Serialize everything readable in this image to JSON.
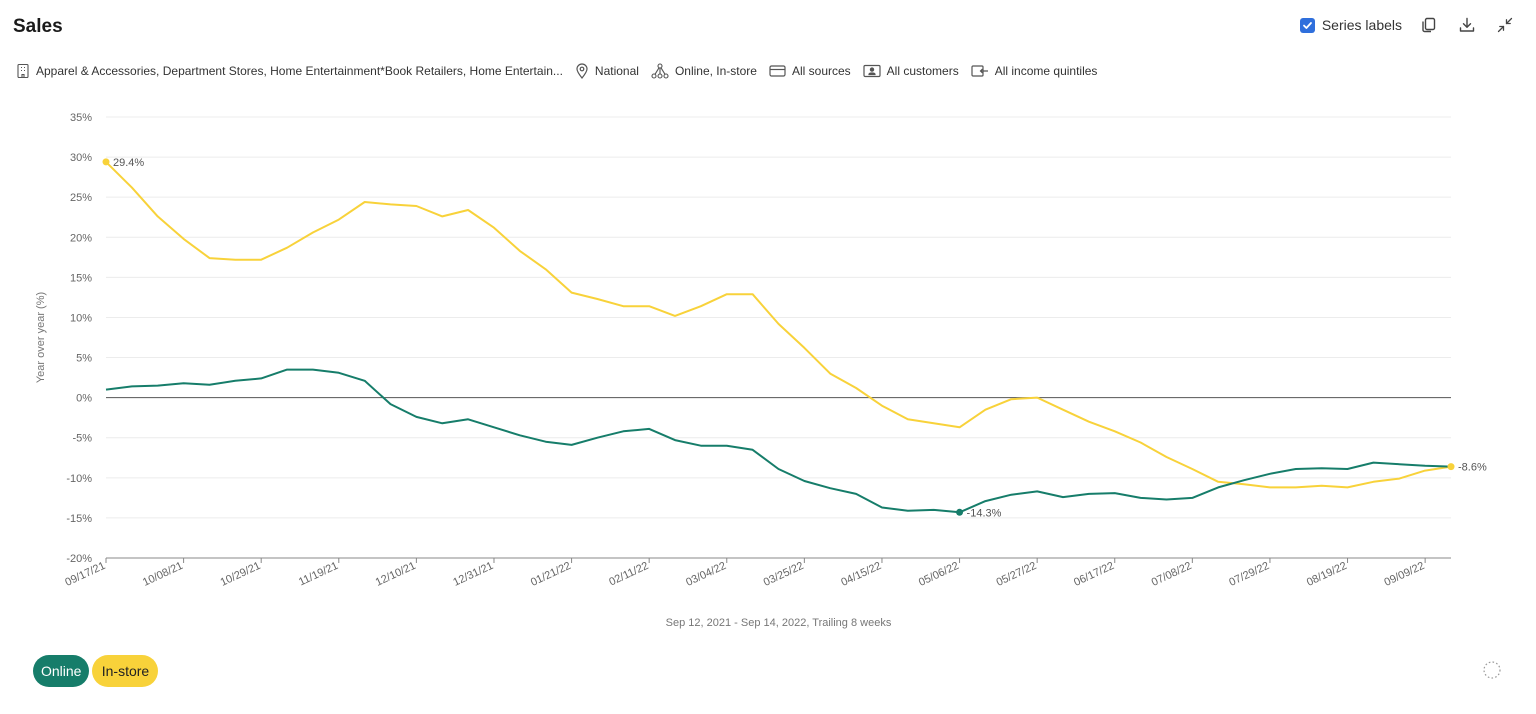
{
  "header": {
    "title": "Sales",
    "series_labels_text": "Series labels",
    "series_labels_checked": true
  },
  "filters": [
    {
      "icon": "building-icon",
      "text": "Apparel & Accessories, Department Stores, Home Entertainment*Book Retailers, Home Entertain..."
    },
    {
      "icon": "location-pin-icon",
      "text": "National"
    },
    {
      "icon": "channels-icon",
      "text": "Online, In-store"
    },
    {
      "icon": "card-icon",
      "text": "All sources"
    },
    {
      "icon": "customer-id-icon",
      "text": "All customers"
    },
    {
      "icon": "income-icon",
      "text": "All income quintiles"
    }
  ],
  "chart_data": {
    "type": "line",
    "title": "",
    "xlabel": "Sep 12, 2021 - Sep 14, 2022, Trailing 8 weeks",
    "ylabel": "Year over year (%)",
    "ylim": [
      -20,
      35
    ],
    "y_ticks": [
      35,
      30,
      25,
      20,
      15,
      10,
      5,
      0,
      -5,
      -10,
      -15,
      -20
    ],
    "y_tick_labels": [
      "35%",
      "30%",
      "25%",
      "20%",
      "15%",
      "10%",
      "5%",
      "0%",
      "-5%",
      "-10%",
      "-15%",
      "-20%"
    ],
    "x_tick_labels": [
      "09/17/21",
      "10/08/21",
      "10/29/21",
      "11/19/21",
      "12/10/21",
      "12/31/21",
      "01/21/22",
      "02/11/22",
      "03/04/22",
      "03/25/22",
      "04/15/22",
      "05/06/22",
      "05/27/22",
      "06/17/22",
      "07/08/22",
      "07/29/22",
      "08/19/22",
      "09/09/22"
    ],
    "x_tick_week_index": [
      0,
      3,
      6,
      9,
      12,
      15,
      18,
      21,
      24,
      27,
      30,
      33,
      36,
      39,
      42,
      45,
      48,
      51
    ],
    "weeks": 53,
    "grid": true,
    "series": [
      {
        "name": "Online",
        "color": "#167d6a",
        "values": [
          1.0,
          1.4,
          1.5,
          1.8,
          1.6,
          2.1,
          2.4,
          3.5,
          3.5,
          3.1,
          2.1,
          -0.8,
          -2.4,
          -3.2,
          -2.7,
          -3.7,
          -4.7,
          -5.5,
          -5.9,
          -5.0,
          -4.2,
          -3.9,
          -5.3,
          -6.0,
          -6.0,
          -6.5,
          -8.9,
          -10.4,
          -11.3,
          -12.0,
          -13.7,
          -14.1,
          -14.0,
          -14.3,
          -12.9,
          -12.1,
          -11.7,
          -12.4,
          -12.0,
          -11.9,
          -12.5,
          -12.7,
          -12.5,
          -11.2,
          -10.3,
          -9.5,
          -8.9,
          -8.8,
          -8.9,
          -8.1,
          -8.3,
          -8.5,
          -8.6
        ],
        "label_text": "-14.3%",
        "label_index": 33
      },
      {
        "name": "In-store",
        "color": "#f8d23a",
        "values": [
          29.4,
          26.2,
          22.6,
          19.8,
          17.4,
          17.2,
          17.2,
          18.7,
          20.6,
          22.2,
          24.4,
          24.1,
          23.9,
          22.6,
          23.4,
          21.2,
          18.3,
          16.0,
          13.1,
          12.3,
          11.4,
          11.4,
          10.2,
          11.4,
          12.9,
          12.9,
          9.2,
          6.2,
          3.0,
          1.2,
          -1.0,
          -2.7,
          -3.2,
          -3.7,
          -1.5,
          -0.2,
          0.0,
          -1.5,
          -3.0,
          -4.2,
          -5.6,
          -7.4,
          -8.9,
          -10.5,
          -10.8,
          -11.2,
          -11.2,
          -11.0,
          -11.2,
          -10.5,
          -10.1,
          -9.1,
          -8.6
        ],
        "label_text": "29.4%",
        "label_index": 0,
        "end_label_text": "-8.6%",
        "end_label_index": 52
      }
    ]
  },
  "legend": {
    "online": "Online",
    "instore": "In-store"
  }
}
